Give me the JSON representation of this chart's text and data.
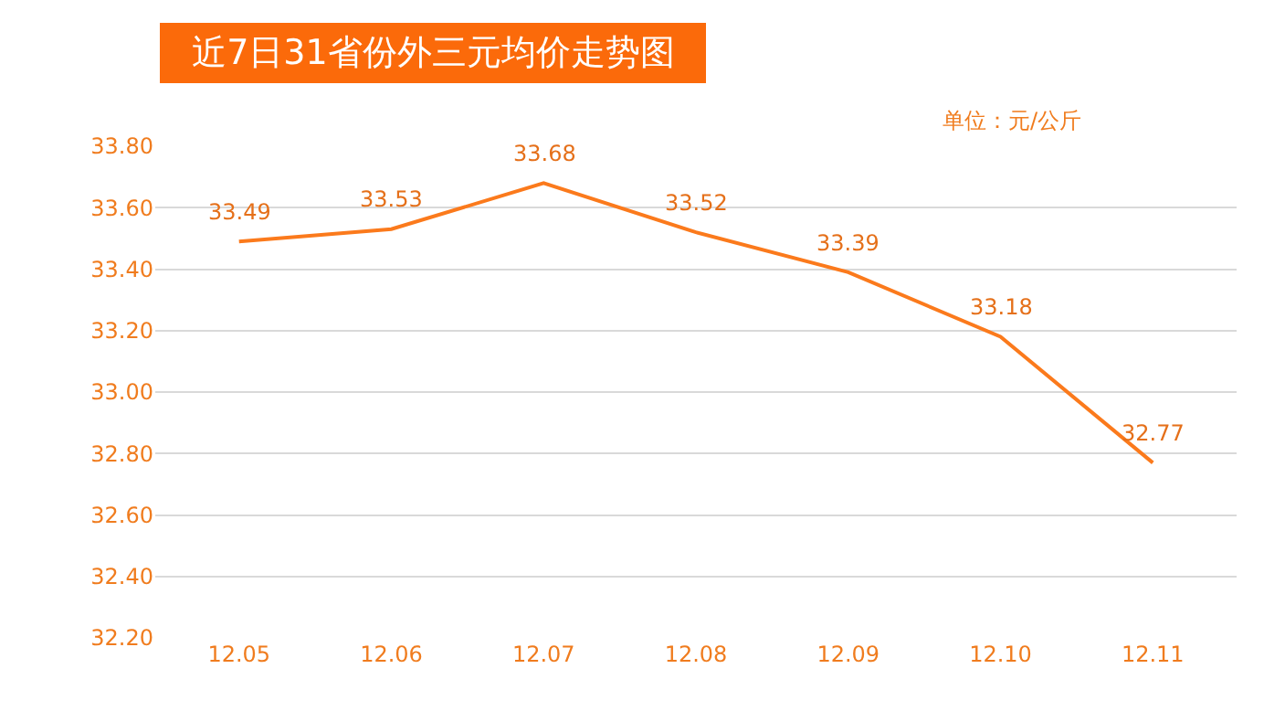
{
  "chart_data": {
    "type": "line",
    "title": "近7日31省份外三元均价走势图",
    "annotations": [
      "单位：元/公斤"
    ],
    "categories": [
      "12.05",
      "12.06",
      "12.07",
      "12.08",
      "12.09",
      "12.10",
      "12.11"
    ],
    "series": [
      {
        "color": "#fb7a1c",
        "values": [
          33.49,
          33.53,
          33.68,
          33.52,
          33.39,
          33.18,
          32.77
        ]
      }
    ],
    "ylim": [
      32.2,
      33.8
    ],
    "yticks": [
      {
        "value": 32.2,
        "label": "32.20"
      },
      {
        "value": 32.4,
        "label": "32.40"
      },
      {
        "value": 32.6,
        "label": "32.60"
      },
      {
        "value": 32.8,
        "label": "32.80"
      },
      {
        "value": 33.0,
        "label": "33.00"
      },
      {
        "value": 33.2,
        "label": "33.20"
      },
      {
        "value": 33.4,
        "label": "33.40"
      },
      {
        "value": 33.6,
        "label": "33.60"
      },
      {
        "value": 33.8,
        "label": "33.80"
      }
    ],
    "grid": "y",
    "data_labels": true,
    "legend": false,
    "marker": "none",
    "line_style": "solid"
  }
}
